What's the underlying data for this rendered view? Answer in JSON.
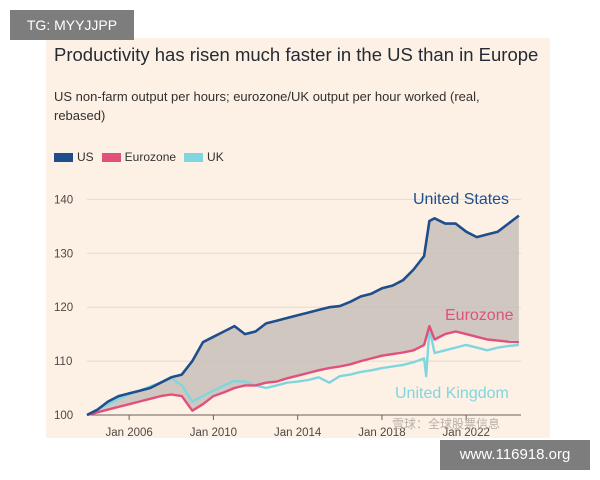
{
  "watermarks": {
    "top_left": "TG: MYYJJPP",
    "bottom_right": "www.116918.org",
    "overlay": "雪球：全球股票信息"
  },
  "chart_data": {
    "type": "line",
    "title": "Productivity has risen much faster in the US than in Europe",
    "subtitle": "US non-farm output per hours; eurozone/UK output per hour worked (real, rebased)",
    "x_ticks": [
      "Jan 2006",
      "Jan 2010",
      "Jan 2014",
      "Jan 2018",
      "Jan 2022"
    ],
    "y_ticks": [
      100,
      110,
      120,
      130,
      140
    ],
    "ylim": [
      100,
      141
    ],
    "xlim": [
      2004.0,
      2024.6
    ],
    "grid": true,
    "shaded_between": [
      "United States",
      "Eurozone"
    ],
    "legend": {
      "placement": "top-left",
      "entries": [
        "US",
        "Eurozone",
        "UK"
      ]
    },
    "series": [
      {
        "name": "United States",
        "legend": "US",
        "color": "#1f4e8c",
        "x": [
          2004.0,
          2004.5,
          2005.0,
          2005.5,
          2006.0,
          2006.5,
          2007.0,
          2007.5,
          2008.0,
          2008.5,
          2009.0,
          2009.5,
          2010.0,
          2010.5,
          2011.0,
          2011.5,
          2012.0,
          2012.5,
          2013.0,
          2013.5,
          2014.0,
          2014.5,
          2015.0,
          2015.5,
          2016.0,
          2016.5,
          2017.0,
          2017.5,
          2018.0,
          2018.5,
          2019.0,
          2019.5,
          2020.0,
          2020.25,
          2020.5,
          2021.0,
          2021.5,
          2022.0,
          2022.5,
          2023.0,
          2023.5,
          2024.0,
          2024.5
        ],
        "y": [
          100.0,
          101.0,
          102.5,
          103.5,
          104.0,
          104.5,
          105.0,
          106.0,
          107.0,
          107.5,
          110.0,
          113.5,
          114.5,
          115.5,
          116.5,
          115.0,
          115.5,
          117.0,
          117.5,
          118.0,
          118.5,
          119.0,
          119.5,
          120.0,
          120.2,
          121.0,
          122.0,
          122.5,
          123.5,
          124.0,
          125.0,
          127.0,
          129.5,
          136.0,
          136.5,
          135.5,
          135.5,
          134.0,
          133.0,
          133.5,
          134.0,
          135.5,
          137.0
        ]
      },
      {
        "name": "Eurozone",
        "legend": "Eurozone",
        "color": "#e0507a",
        "x": [
          2004.0,
          2004.5,
          2005.0,
          2005.5,
          2006.0,
          2006.5,
          2007.0,
          2007.5,
          2008.0,
          2008.5,
          2009.0,
          2009.5,
          2010.0,
          2010.5,
          2011.0,
          2011.5,
          2012.0,
          2012.5,
          2013.0,
          2013.5,
          2014.0,
          2014.5,
          2015.0,
          2015.5,
          2016.0,
          2016.5,
          2017.0,
          2017.5,
          2018.0,
          2018.5,
          2019.0,
          2019.5,
          2020.0,
          2020.25,
          2020.5,
          2021.0,
          2021.5,
          2022.0,
          2022.5,
          2023.0,
          2023.5,
          2024.0,
          2024.5
        ],
        "y": [
          100.0,
          100.5,
          101.0,
          101.5,
          102.0,
          102.5,
          103.0,
          103.5,
          103.8,
          103.5,
          100.8,
          102.0,
          103.5,
          104.2,
          105.0,
          105.5,
          105.5,
          106.0,
          106.2,
          106.8,
          107.3,
          107.8,
          108.3,
          108.7,
          109.0,
          109.4,
          110.0,
          110.5,
          111.0,
          111.3,
          111.6,
          112.0,
          113.0,
          116.5,
          114.0,
          115.0,
          115.5,
          115.0,
          114.5,
          114.0,
          113.8,
          113.6,
          113.5
        ]
      },
      {
        "name": "United Kingdom",
        "legend": "UK",
        "color": "#7fd6df",
        "x": [
          2004.0,
          2004.5,
          2005.0,
          2005.5,
          2006.0,
          2006.5,
          2007.0,
          2007.5,
          2008.0,
          2008.5,
          2009.0,
          2009.5,
          2010.0,
          2010.5,
          2011.0,
          2011.5,
          2012.0,
          2012.5,
          2013.0,
          2013.5,
          2014.0,
          2014.5,
          2015.0,
          2015.5,
          2016.0,
          2016.5,
          2017.0,
          2017.5,
          2018.0,
          2018.5,
          2019.0,
          2019.5,
          2020.0,
          2020.1,
          2020.25,
          2020.5,
          2021.0,
          2021.5,
          2022.0,
          2022.5,
          2023.0,
          2023.5,
          2024.0,
          2024.5
        ],
        "y": [
          100.0,
          101.0,
          102.0,
          103.0,
          103.8,
          104.5,
          105.3,
          106.0,
          106.8,
          105.5,
          102.5,
          103.5,
          104.5,
          105.5,
          106.3,
          106.2,
          105.5,
          105.0,
          105.5,
          106.0,
          106.2,
          106.5,
          107.0,
          106.0,
          107.2,
          107.5,
          108.0,
          108.3,
          108.7,
          109.0,
          109.3,
          109.8,
          110.5,
          107.2,
          116.0,
          111.5,
          112.0,
          112.5,
          113.0,
          112.5,
          112.0,
          112.5,
          112.8,
          113.0
        ]
      }
    ],
    "annotations": [
      {
        "text": "United States",
        "series": "United States"
      },
      {
        "text": "Eurozone",
        "series": "Eurozone"
      },
      {
        "text": "United Kingdom",
        "series": "United Kingdom"
      }
    ]
  }
}
